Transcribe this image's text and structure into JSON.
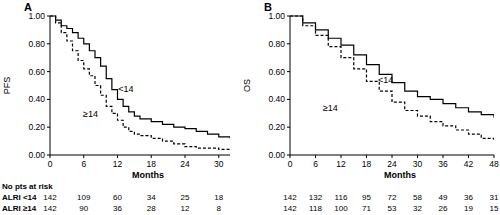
{
  "chart_data": [
    {
      "type": "line",
      "title": "A",
      "y_label": "PFS",
      "x_label": "Months",
      "x": [
        0,
        1,
        2,
        3,
        4,
        5,
        6,
        7,
        8,
        9,
        10,
        11,
        12,
        13,
        14,
        15,
        16,
        18,
        20,
        22,
        24,
        26,
        28,
        30,
        32
      ],
      "series": [
        {
          "color": "#000000",
          "line_style": "solid",
          "values": [
            1,
            0.97,
            0.93,
            0.91,
            0.88,
            0.84,
            0.8,
            0.75,
            0.7,
            0.64,
            0.55,
            0.47,
            0.4,
            0.35,
            0.31,
            0.28,
            0.26,
            0.24,
            0.22,
            0.2,
            0.19,
            0.17,
            0.15,
            0.13,
            0.12
          ]
        },
        {
          "color": "#000000",
          "line_style": "dashed",
          "values": [
            1,
            0.95,
            0.88,
            0.82,
            0.75,
            0.68,
            0.62,
            0.57,
            0.5,
            0.43,
            0.35,
            0.3,
            0.25,
            0.2,
            0.17,
            0.15,
            0.14,
            0.12,
            0.1,
            0.08,
            0.06,
            0.05,
            0.05,
            0.04,
            0.04
          ]
        }
      ],
      "annotations": [
        {
          "text": "<14",
          "x": 13.5,
          "y": 0.45
        },
        {
          "text": "≥14",
          "x": 7.2,
          "y": 0.27
        }
      ],
      "xlim": [
        0,
        32
      ],
      "xticks": [
        0,
        6,
        12,
        18,
        24,
        30
      ],
      "ylim": [
        0,
        1
      ],
      "yticks": [
        {
          "value": 0,
          "label": "0.00"
        },
        {
          "value": 0.2,
          "label": "0.20"
        },
        {
          "value": 0.4,
          "label": "0.40"
        },
        {
          "value": 0.6,
          "label": "0.60"
        },
        {
          "value": 0.8,
          "label": "0.80"
        },
        {
          "value": 1,
          "label": "1.00"
        }
      ],
      "risk_table": {
        "title": "No pts at risk",
        "rows": [
          {
            "label": "ALRI <14",
            "values": [
              142,
              109,
              60,
              34,
              25,
              18
            ]
          },
          {
            "label": "ALRI ≥14",
            "values": [
              142,
              90,
              36,
              28,
              12,
              8
            ]
          }
        ]
      }
    },
    {
      "type": "line",
      "title": "B",
      "y_label": "OS",
      "x_label": "Months",
      "x": [
        0,
        3,
        6,
        9,
        12,
        15,
        18,
        21,
        24,
        27,
        30,
        33,
        36,
        39,
        42,
        45,
        48
      ],
      "series": [
        {
          "color": "#000000",
          "line_style": "solid",
          "values": [
            1,
            0.95,
            0.9,
            0.84,
            0.79,
            0.72,
            0.65,
            0.58,
            0.52,
            0.46,
            0.42,
            0.4,
            0.37,
            0.34,
            0.31,
            0.29,
            0.27
          ]
        },
        {
          "color": "#000000",
          "line_style": "dashed",
          "values": [
            1,
            0.93,
            0.86,
            0.78,
            0.7,
            0.62,
            0.53,
            0.46,
            0.38,
            0.32,
            0.28,
            0.24,
            0.21,
            0.18,
            0.15,
            0.12,
            0.1
          ]
        }
      ],
      "annotations": [
        {
          "text": "<14",
          "x": 22.5,
          "y": 0.52
        },
        {
          "text": "≥14",
          "x": 9.5,
          "y": 0.32
        }
      ],
      "xlim": [
        0,
        48
      ],
      "xticks": [
        0,
        6,
        12,
        18,
        24,
        30,
        36,
        42,
        48
      ],
      "ylim": [
        0,
        1
      ],
      "yticks": [
        {
          "value": 0,
          "label": "0.00"
        },
        {
          "value": 0.2,
          "label": "0.20"
        },
        {
          "value": 0.4,
          "label": "0.40"
        },
        {
          "value": 0.6,
          "label": "0.60"
        },
        {
          "value": 0.8,
          "label": "0.80"
        },
        {
          "value": 1,
          "label": "1.00"
        }
      ],
      "risk_table": {
        "rows": [
          {
            "values": [
              142,
              132,
              116,
              95,
              72,
              58,
              49,
              36,
              31
            ]
          },
          {
            "values": [
              142,
              118,
              100,
              71,
              53,
              32,
              26,
              19,
              15
            ]
          }
        ]
      }
    }
  ]
}
